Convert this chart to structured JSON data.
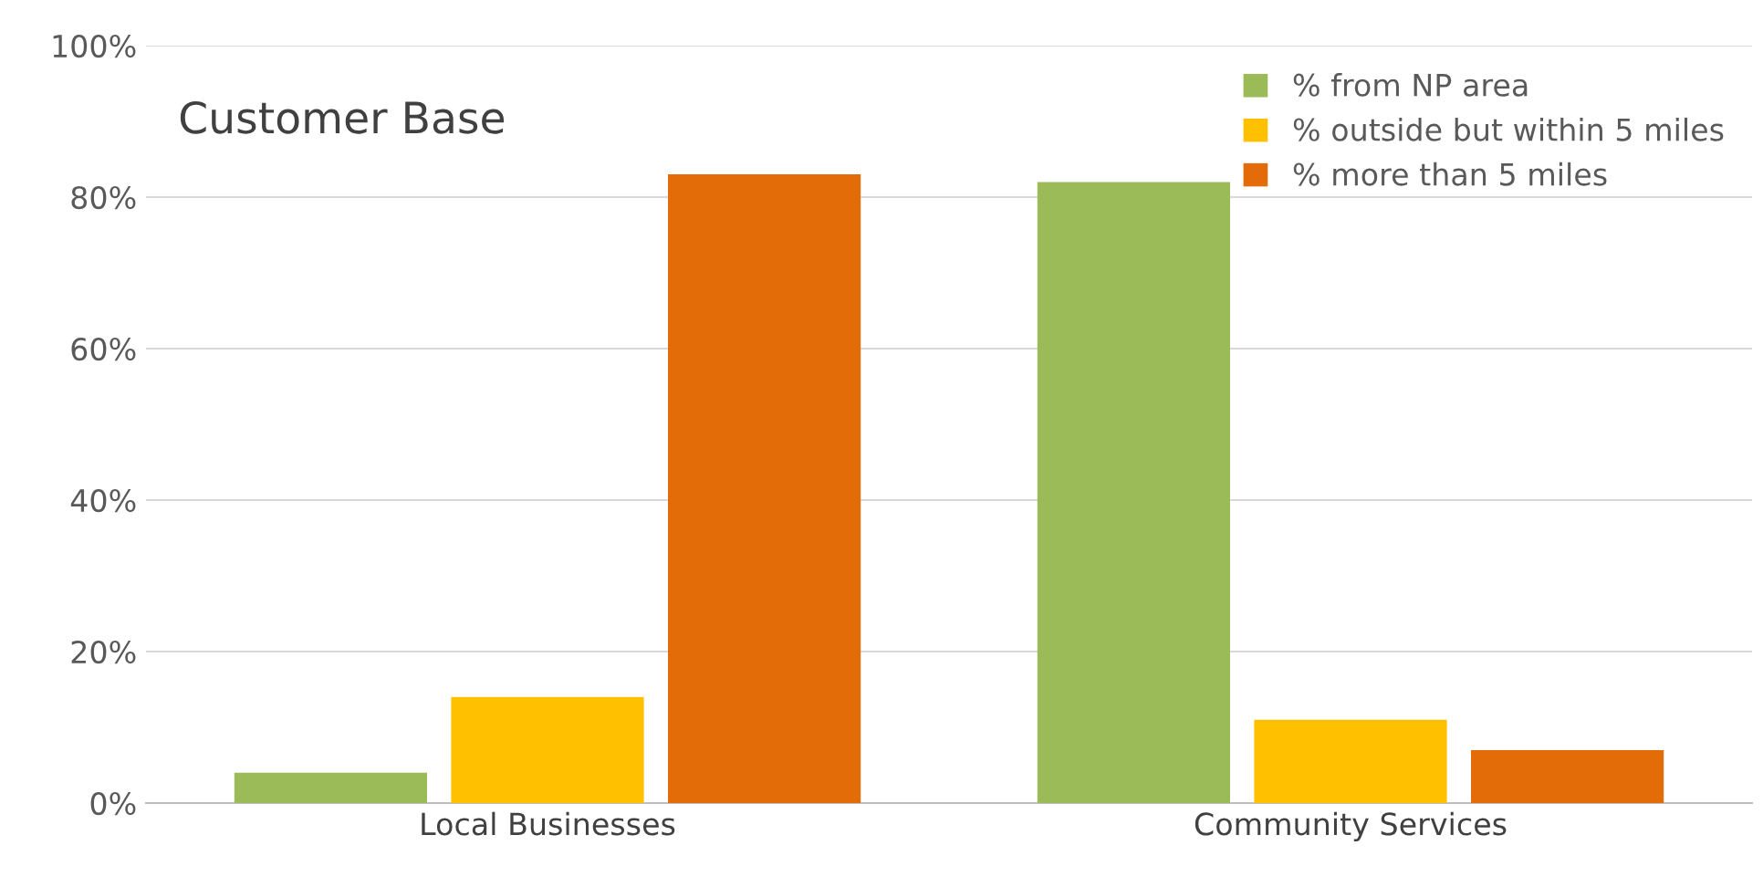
{
  "chart_data": {
    "type": "bar",
    "title": "Customer Base",
    "categories": [
      "Local Businesses",
      "Community Services"
    ],
    "series": [
      {
        "name": "% from NP area",
        "color": "#9bbb59",
        "values": [
          4,
          82
        ]
      },
      {
        "name": "% outside but within 5 miles",
        "color": "#ffc000",
        "values": [
          14,
          11
        ]
      },
      {
        "name": "% more than 5 miles",
        "color": "#e36c09",
        "values": [
          83,
          7
        ]
      }
    ],
    "ylim": [
      0,
      100
    ],
    "yticks": [
      {
        "value": 0,
        "label": "0%"
      },
      {
        "value": 20,
        "label": "20%"
      },
      {
        "value": 40,
        "label": "40%"
      },
      {
        "value": 60,
        "label": "60%"
      },
      {
        "value": 80,
        "label": "80%"
      },
      {
        "value": 100,
        "label": "100%"
      }
    ],
    "grid": "y",
    "legend": "top right"
  }
}
